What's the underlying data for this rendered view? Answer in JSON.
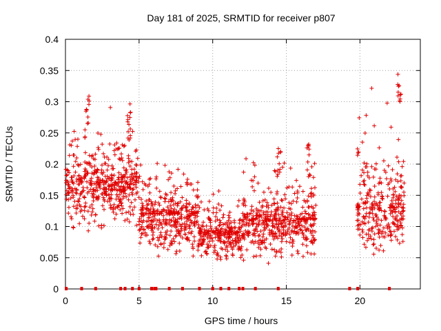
{
  "chart_data": {
    "type": "scatter",
    "title": "Day 181 of 2025, SRMTID for receiver p807",
    "xlabel": "GPS time / hours",
    "ylabel": "SRMTID / TECUs",
    "xlim": [
      0,
      24.1
    ],
    "ylim": [
      0,
      0.4
    ],
    "x_ticks": [
      0,
      5,
      10,
      15,
      20
    ],
    "x_tick_labels": [
      "0",
      "5",
      "10",
      "15",
      "20"
    ],
    "y_ticks": [
      0,
      0.05,
      0.1,
      0.15,
      0.2,
      0.25,
      0.3,
      0.35,
      0.4
    ],
    "y_tick_labels": [
      "0",
      "0.05",
      "0.1",
      "0.15",
      "0.2",
      "0.25",
      "0.3",
      "0.35",
      "0.4"
    ],
    "grid": true,
    "marker": "plus",
    "color": "#e00000",
    "series": [
      {
        "name": "SRMTID",
        "segments": [
          {
            "x_start": 0.0,
            "x_end": 5.0,
            "y_min": 0.08,
            "y_max": 0.32,
            "typical": 0.17
          },
          {
            "x_start": 5.0,
            "x_end": 9.0,
            "y_min": 0.04,
            "y_max": 0.23,
            "typical": 0.12
          },
          {
            "x_start": 9.0,
            "x_end": 12.0,
            "y_min": 0.035,
            "y_max": 0.18,
            "typical": 0.09
          },
          {
            "x_start": 12.0,
            "x_end": 17.0,
            "y_min": 0.035,
            "y_max": 0.24,
            "typical": 0.11
          },
          {
            "x_start": 19.8,
            "x_end": 23.0,
            "y_min": 0.04,
            "y_max": 0.36,
            "typical": 0.13
          }
        ],
        "peaks": [
          {
            "x": 1.5,
            "y": 0.32
          },
          {
            "x": 4.3,
            "y": 0.3
          },
          {
            "x": 14.5,
            "y": 0.23
          },
          {
            "x": 16.5,
            "y": 0.24
          },
          {
            "x": 22.7,
            "y": 0.36
          }
        ],
        "zero_points_x": [
          0.05,
          1.1,
          2.05,
          3.75,
          4.05,
          4.55,
          5.0,
          5.85,
          6.05,
          6.15,
          7.05,
          7.95,
          9.1,
          10.0,
          10.55,
          11.1,
          11.8,
          12.05,
          12.9,
          14.45,
          19.3,
          19.85,
          22.0
        ]
      }
    ]
  }
}
